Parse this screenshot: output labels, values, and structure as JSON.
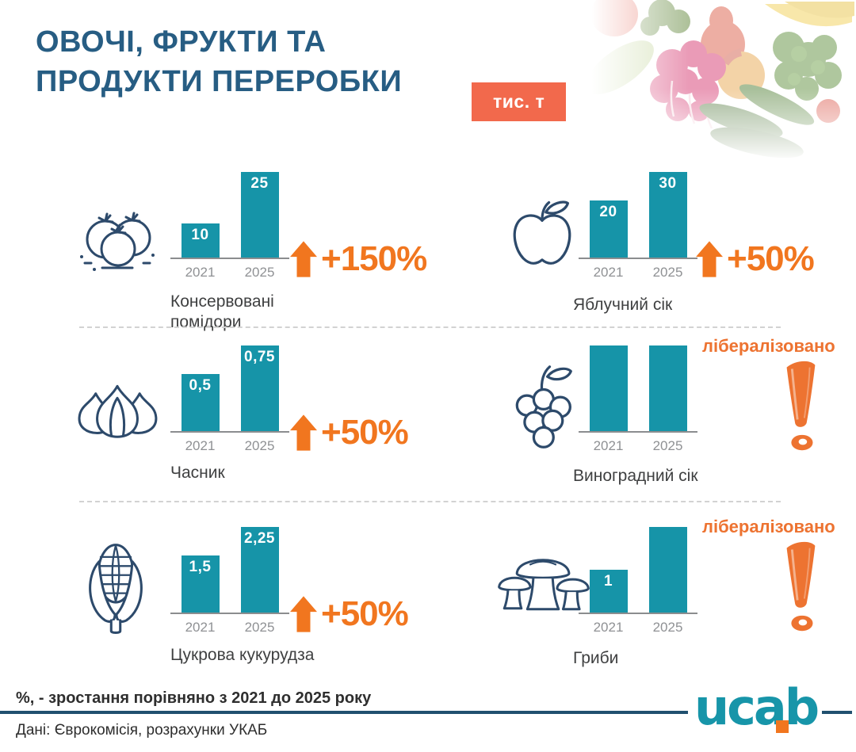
{
  "header": {
    "title_line1": "ОВОЧІ, ФРУКТИ ТА",
    "title_line2": "ПРОДУКТИ ПЕРЕРОБКИ",
    "unit_badge": "тис. т"
  },
  "chart_data": [
    {
      "type": "bar",
      "id": "canned-tomatoes",
      "title": "Консервовані помідори",
      "icon": "tomatoes-icon",
      "categories": [
        "2021",
        "2025"
      ],
      "values": [
        10,
        25
      ],
      "value_labels": [
        "10",
        "25"
      ],
      "growth": "+150%",
      "liberalized": false,
      "bar_fractions": [
        0.4,
        1
      ]
    },
    {
      "type": "bar",
      "id": "apple-juice",
      "title": "Яблучний сік",
      "icon": "apple-icon",
      "categories": [
        "2021",
        "2025"
      ],
      "values": [
        20,
        30
      ],
      "value_labels": [
        "20",
        "30"
      ],
      "growth": "+50%",
      "liberalized": false,
      "bar_fractions": [
        0.667,
        1
      ]
    },
    {
      "type": "bar",
      "id": "garlic",
      "title": "Часник",
      "icon": "garlic-icon",
      "categories": [
        "2021",
        "2025"
      ],
      "values": [
        0.5,
        0.75
      ],
      "value_labels": [
        "0,5",
        "0,75"
      ],
      "growth": "+50%",
      "liberalized": false,
      "bar_fractions": [
        0.667,
        1
      ]
    },
    {
      "type": "bar",
      "id": "grape-juice",
      "title": "Виноградний сік",
      "icon": "grapes-icon",
      "categories": [
        "2021",
        "2025"
      ],
      "values": [
        null,
        null
      ],
      "value_labels": [
        "",
        ""
      ],
      "growth": null,
      "status": "лібералізовано",
      "liberalized": true,
      "bar_fractions": [
        1,
        1
      ]
    },
    {
      "type": "bar",
      "id": "sweet-corn",
      "title": "Цукрова кукурудза",
      "icon": "corn-icon",
      "categories": [
        "2021",
        "2025"
      ],
      "values": [
        1.5,
        2.25
      ],
      "value_labels": [
        "1,5",
        "2,25"
      ],
      "growth": "+50%",
      "liberalized": false,
      "bar_fractions": [
        0.667,
        1
      ]
    },
    {
      "type": "bar",
      "id": "mushrooms",
      "title": "Гриби",
      "icon": "mushrooms-icon",
      "categories": [
        "2021",
        "2025"
      ],
      "values": [
        1,
        null
      ],
      "value_labels": [
        "1",
        ""
      ],
      "growth": null,
      "status": "лібералізовано",
      "liberalized": true,
      "bar_fractions": [
        0.5,
        1
      ]
    }
  ],
  "footer": {
    "note": "%, - зростання порівняно з 2021 до 2025 року",
    "source": "Дані: Єврокомісія, розрахунки УКАБ",
    "logo_text": "ucab"
  },
  "colors": {
    "bar_teal": "#1694a8",
    "accent_orange": "#f1761f",
    "liberalized_orange": "#ed7331",
    "badge_coral": "#f2694c",
    "title_navy": "#275d83",
    "icon_navy": "#2d4a6b",
    "footer_rule_navy": "#20506f",
    "logo_teal": "#1795a9"
  }
}
